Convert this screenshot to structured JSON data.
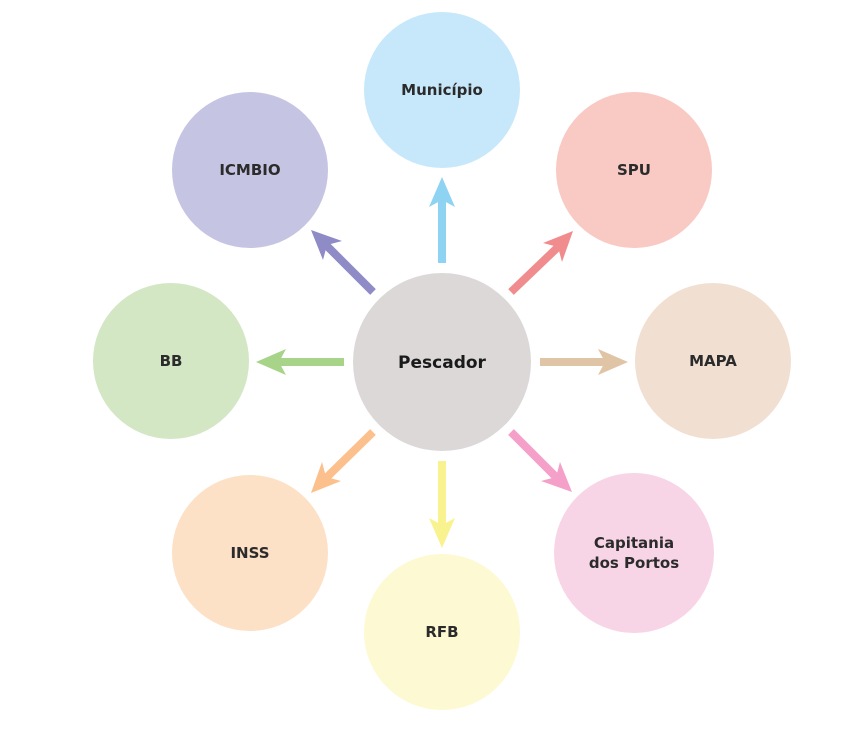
{
  "center": {
    "label": "Pescador",
    "color": "#dcd8d8"
  },
  "nodes": [
    {
      "id": "municipio",
      "lines": [
        "Município"
      ],
      "fill": "#c7e8fb",
      "arrow": "#8fd3f3"
    },
    {
      "id": "spu",
      "lines": [
        "SPU"
      ],
      "fill": "#f9c9c4",
      "arrow": "#f08c8e"
    },
    {
      "id": "mapa",
      "lines": [
        "MAPA"
      ],
      "fill": "#f1e0d2",
      "arrow": "#dfc4a6"
    },
    {
      "id": "capitania",
      "lines": [
        "Capitania",
        "dos Portos"
      ],
      "fill": "#f8d5e6",
      "arrow": "#f4a0c8"
    },
    {
      "id": "rfb",
      "lines": [
        "RFB"
      ],
      "fill": "#fdf9d2",
      "arrow": "#f9f38f"
    },
    {
      "id": "inss",
      "lines": [
        "INSS"
      ],
      "fill": "#fce1c6",
      "arrow": "#fbc08c"
    },
    {
      "id": "bb",
      "lines": [
        "BB"
      ],
      "fill": "#d3e7c4",
      "arrow": "#a7d489"
    },
    {
      "id": "icmbio",
      "lines": [
        "ICMBIO"
      ],
      "fill": "#c6c4e3",
      "arrow": "#8f8bc6"
    }
  ]
}
